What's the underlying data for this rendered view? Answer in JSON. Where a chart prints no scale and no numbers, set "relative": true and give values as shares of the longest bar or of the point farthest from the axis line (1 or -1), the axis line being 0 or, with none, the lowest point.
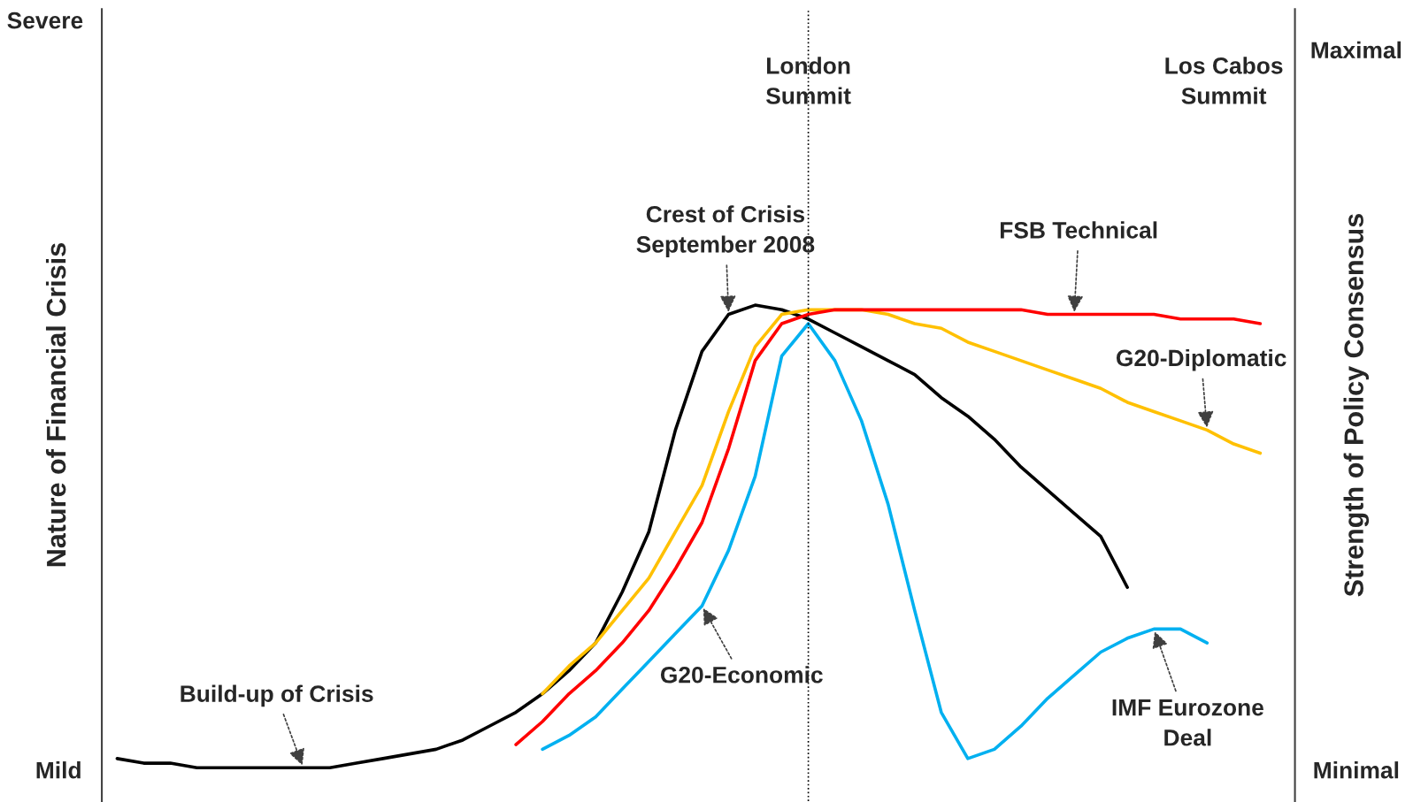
{
  "chart_data": {
    "type": "line",
    "relative": true,
    "ylabel": "Nature of Financial Crisis",
    "y2label": "Strength of Policy Consensus",
    "categories": [
      null,
      null,
      null,
      null,
      null,
      null,
      null,
      null,
      null,
      null,
      null,
      null,
      null,
      null,
      null,
      null,
      null,
      null,
      null,
      null,
      null,
      null,
      null,
      null,
      null,
      null,
      null,
      null,
      null,
      null,
      null,
      null,
      null,
      null,
      null,
      null,
      null,
      null,
      null,
      null,
      null,
      null,
      null,
      null,
      null
    ],
    "series": [
      {
        "color": "#000000",
        "values": [
          0.02,
          0.01,
          0.01,
          0.0,
          0.0,
          0.0,
          0.0,
          0.0,
          0.0,
          0.01,
          0.02,
          0.03,
          0.04,
          0.06,
          0.09,
          0.12,
          0.16,
          0.21,
          0.27,
          0.38,
          0.51,
          0.73,
          0.9,
          0.98,
          1.0,
          0.99,
          0.97,
          0.94,
          0.91,
          0.88,
          0.85,
          0.8,
          0.76,
          0.71,
          0.65,
          0.6,
          0.55,
          0.5,
          0.39,
          null,
          null,
          null,
          null,
          null,
          null
        ]
      },
      {
        "name": "G20-Diplomatic",
        "color": "#ffc000",
        "values": [
          null,
          null,
          null,
          null,
          null,
          null,
          null,
          null,
          null,
          null,
          null,
          null,
          null,
          null,
          null,
          null,
          0.16,
          0.22,
          0.27,
          0.34,
          0.41,
          0.51,
          0.61,
          0.77,
          0.91,
          0.98,
          0.99,
          0.99,
          0.99,
          0.98,
          0.96,
          0.95,
          0.92,
          0.9,
          0.88,
          0.86,
          0.84,
          0.82,
          0.79,
          0.77,
          0.75,
          0.73,
          0.7,
          0.68,
          null
        ]
      },
      {
        "name": "FSB Technical",
        "color": "#ff0000",
        "values": [
          null,
          null,
          null,
          null,
          null,
          null,
          null,
          null,
          null,
          null,
          null,
          null,
          null,
          null,
          null,
          0.05,
          0.1,
          0.16,
          0.21,
          0.27,
          0.34,
          0.43,
          0.53,
          0.69,
          0.88,
          0.96,
          0.98,
          0.99,
          0.99,
          0.99,
          0.99,
          0.99,
          0.99,
          0.99,
          0.99,
          0.98,
          0.98,
          0.98,
          0.98,
          0.98,
          0.97,
          0.97,
          0.97,
          0.96,
          null
        ]
      },
      {
        "name": "G20-Economic",
        "color": "#00b0f0",
        "values": [
          null,
          null,
          null,
          null,
          null,
          null,
          null,
          null,
          null,
          null,
          null,
          null,
          null,
          null,
          null,
          null,
          0.04,
          0.07,
          0.11,
          0.17,
          0.23,
          0.29,
          0.35,
          0.47,
          0.63,
          0.89,
          0.96,
          0.88,
          0.75,
          0.57,
          0.34,
          0.12,
          0.02,
          0.04,
          0.09,
          0.15,
          0.2,
          0.25,
          0.28,
          0.3,
          0.3,
          0.27,
          null,
          null,
          null
        ]
      }
    ],
    "annotations": [
      "London\nSummit",
      "Severe",
      "Mild",
      "Maximal",
      "Minimal",
      "Los Cabos\nSummit",
      "Crest of Crisis\nSeptember 2008",
      "Build-up of Crisis",
      "IMF Eurozone\nDeal"
    ]
  }
}
